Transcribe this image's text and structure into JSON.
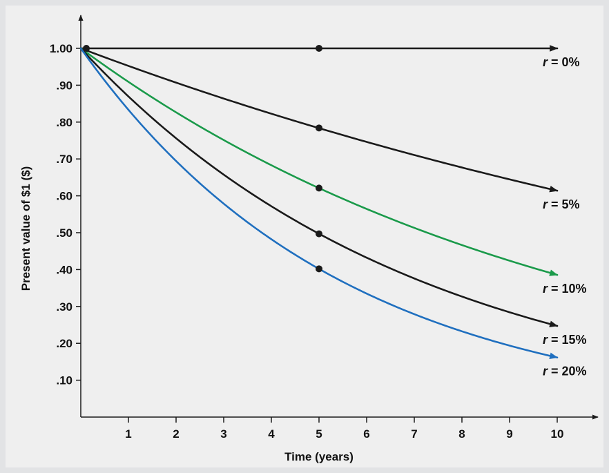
{
  "chart_data": {
    "type": "line",
    "xlabel": "Time (years)",
    "ylabel": "Present value of $1 ($)",
    "xlim": [
      0,
      10
    ],
    "ylim": [
      0,
      1.0
    ],
    "x_ticks": [
      {
        "value": 1,
        "label": "1"
      },
      {
        "value": 2,
        "label": "2"
      },
      {
        "value": 3,
        "label": "3"
      },
      {
        "value": 4,
        "label": "4"
      },
      {
        "value": 5,
        "label": "5"
      },
      {
        "value": 6,
        "label": "6"
      },
      {
        "value": 7,
        "label": "7"
      },
      {
        "value": 8,
        "label": "8"
      },
      {
        "value": 9,
        "label": "9"
      },
      {
        "value": 10,
        "label": "10"
      }
    ],
    "y_ticks": [
      {
        "value": 1.0,
        "label": "1.00"
      },
      {
        "value": 0.9,
        "label": ".90"
      },
      {
        "value": 0.8,
        "label": ".80"
      },
      {
        "value": 0.7,
        "label": ".70"
      },
      {
        "value": 0.6,
        "label": ".60"
      },
      {
        "value": 0.5,
        "label": ".50"
      },
      {
        "value": 0.4,
        "label": ".40"
      },
      {
        "value": 0.3,
        "label": ".30"
      },
      {
        "value": 0.2,
        "label": ".20"
      },
      {
        "value": 0.1,
        "label": ".10"
      }
    ],
    "grid": false,
    "series": [
      {
        "id": "r0",
        "rate": 0.0,
        "label_var": "r",
        "label_eq": " = ",
        "label_val": "0%",
        "color": "#1a1a1a",
        "x": [
          0,
          1,
          2,
          3,
          4,
          5,
          6,
          7,
          8,
          9,
          10
        ],
        "y": [
          1.0,
          1.0,
          1.0,
          1.0,
          1.0,
          1.0,
          1.0,
          1.0,
          1.0,
          1.0,
          1.0
        ],
        "marker": {
          "x": 5,
          "y": 1.0
        }
      },
      {
        "id": "r5",
        "rate": 0.05,
        "label_var": "r",
        "label_eq": " = ",
        "label_val": "5%",
        "color": "#1a1a1a",
        "x": [
          0,
          1,
          2,
          3,
          4,
          5,
          6,
          7,
          8,
          9,
          10
        ],
        "y": [
          1.0,
          0.952,
          0.907,
          0.864,
          0.823,
          0.784,
          0.746,
          0.711,
          0.677,
          0.645,
          0.614
        ],
        "marker": {
          "x": 5,
          "y": 0.784
        }
      },
      {
        "id": "r10",
        "rate": 0.1,
        "label_var": "r",
        "label_eq": " = ",
        "label_val": "10%",
        "color": "#1a9a4a",
        "x": [
          0,
          1,
          2,
          3,
          4,
          5,
          6,
          7,
          8,
          9,
          10
        ],
        "y": [
          1.0,
          0.909,
          0.826,
          0.751,
          0.683,
          0.621,
          0.564,
          0.513,
          0.467,
          0.424,
          0.386
        ],
        "marker": {
          "x": 5,
          "y": 0.621
        }
      },
      {
        "id": "r15",
        "rate": 0.15,
        "label_var": "r",
        "label_eq": " = ",
        "label_val": "15%",
        "color": "#1a1a1a",
        "x": [
          0,
          1,
          2,
          3,
          4,
          5,
          6,
          7,
          8,
          9,
          10
        ],
        "y": [
          1.0,
          0.87,
          0.756,
          0.658,
          0.572,
          0.497,
          0.432,
          0.376,
          0.327,
          0.284,
          0.247
        ],
        "marker": {
          "x": 5,
          "y": 0.497
        }
      },
      {
        "id": "r20",
        "rate": 0.2,
        "label_var": "r",
        "label_eq": " = ",
        "label_val": "20%",
        "color": "#1f6fbf",
        "x": [
          0,
          1,
          2,
          3,
          4,
          5,
          6,
          7,
          8,
          9,
          10
        ],
        "y": [
          1.0,
          0.833,
          0.694,
          0.579,
          0.482,
          0.402,
          0.335,
          0.279,
          0.233,
          0.194,
          0.162
        ],
        "marker": {
          "x": 5,
          "y": 0.402
        }
      }
    ],
    "origin_marker": {
      "x": 0,
      "y": 1.0
    }
  }
}
